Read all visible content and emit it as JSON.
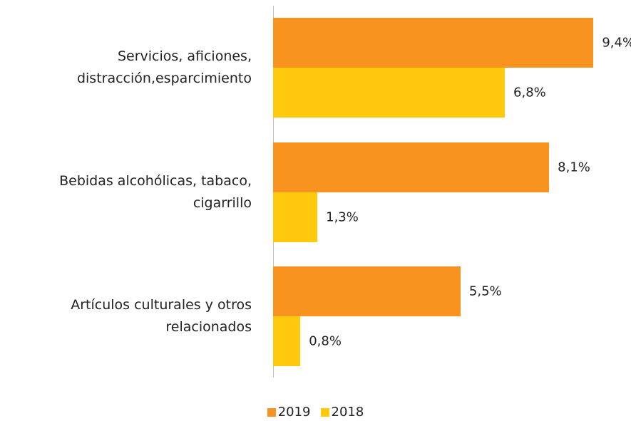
{
  "chart_data": {
    "type": "bar",
    "orientation": "horizontal",
    "categories": [
      "Servicios, aficiones, distracción,esparcimiento",
      "Bebidas alcohólicas, tabaco, cigarrillo",
      "Artículos culturales y otros relacionados"
    ],
    "series": [
      {
        "name": "2019",
        "color": "#f7931e",
        "values": [
          9.4,
          8.1,
          5.5
        ],
        "value_labels": [
          "9,4%",
          "8,1%",
          "5,5%"
        ]
      },
      {
        "name": "2018",
        "color": "#ffc90e",
        "values": [
          6.8,
          1.3,
          0.8
        ],
        "value_labels": [
          "6,8%",
          "1,3%",
          "0,8%"
        ]
      }
    ],
    "legend": "bottom"
  }
}
